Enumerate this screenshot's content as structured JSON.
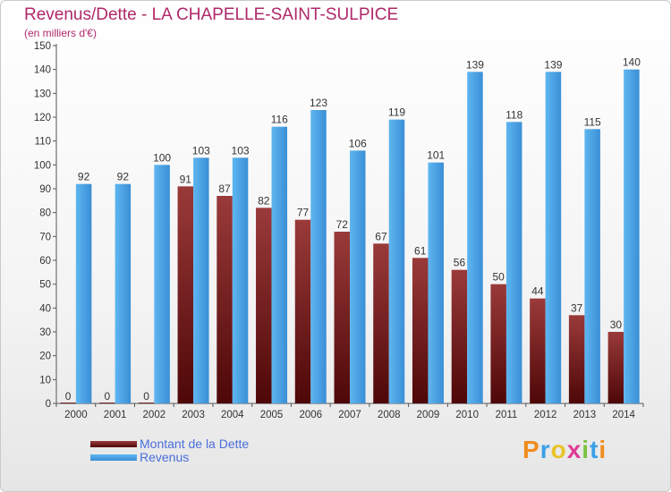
{
  "title": "Revenus/Dette - LA CHAPELLE-SAINT-SULPICE",
  "subtitle": "(en milliers d'€)",
  "logo": {
    "letters": [
      {
        "char": "P",
        "color": "#f08c1e"
      },
      {
        "char": "r",
        "color": "#3aa0e6"
      },
      {
        "char": "o",
        "color": "#e8c42a"
      },
      {
        "char": "x",
        "color": "#e03c96"
      },
      {
        "char": "i",
        "color": "#7cc242"
      },
      {
        "char": "t",
        "color": "#3aa0e6"
      },
      {
        "char": "i",
        "color": "#f08c1e"
      }
    ]
  },
  "chart_data": {
    "type": "bar",
    "categories": [
      "2000",
      "2001",
      "2002",
      "2003",
      "2004",
      "2005",
      "2006",
      "2007",
      "2008",
      "2009",
      "2010",
      "2011",
      "2012",
      "2013",
      "2014"
    ],
    "series": [
      {
        "name": "Montant de la Dette",
        "color": "#7a1c1c",
        "values": [
          0,
          0,
          0,
          91,
          87,
          82,
          77,
          72,
          67,
          61,
          56,
          50,
          44,
          37,
          30
        ]
      },
      {
        "name": "Revenus",
        "color": "#4aa3e6",
        "values": [
          92,
          92,
          100,
          103,
          103,
          116,
          123,
          106,
          119,
          101,
          139,
          118,
          139,
          115,
          140
        ]
      }
    ],
    "ylim": [
      0,
      150
    ],
    "ytick_step": 10,
    "grid": false,
    "legend_position": "bottom-left"
  }
}
